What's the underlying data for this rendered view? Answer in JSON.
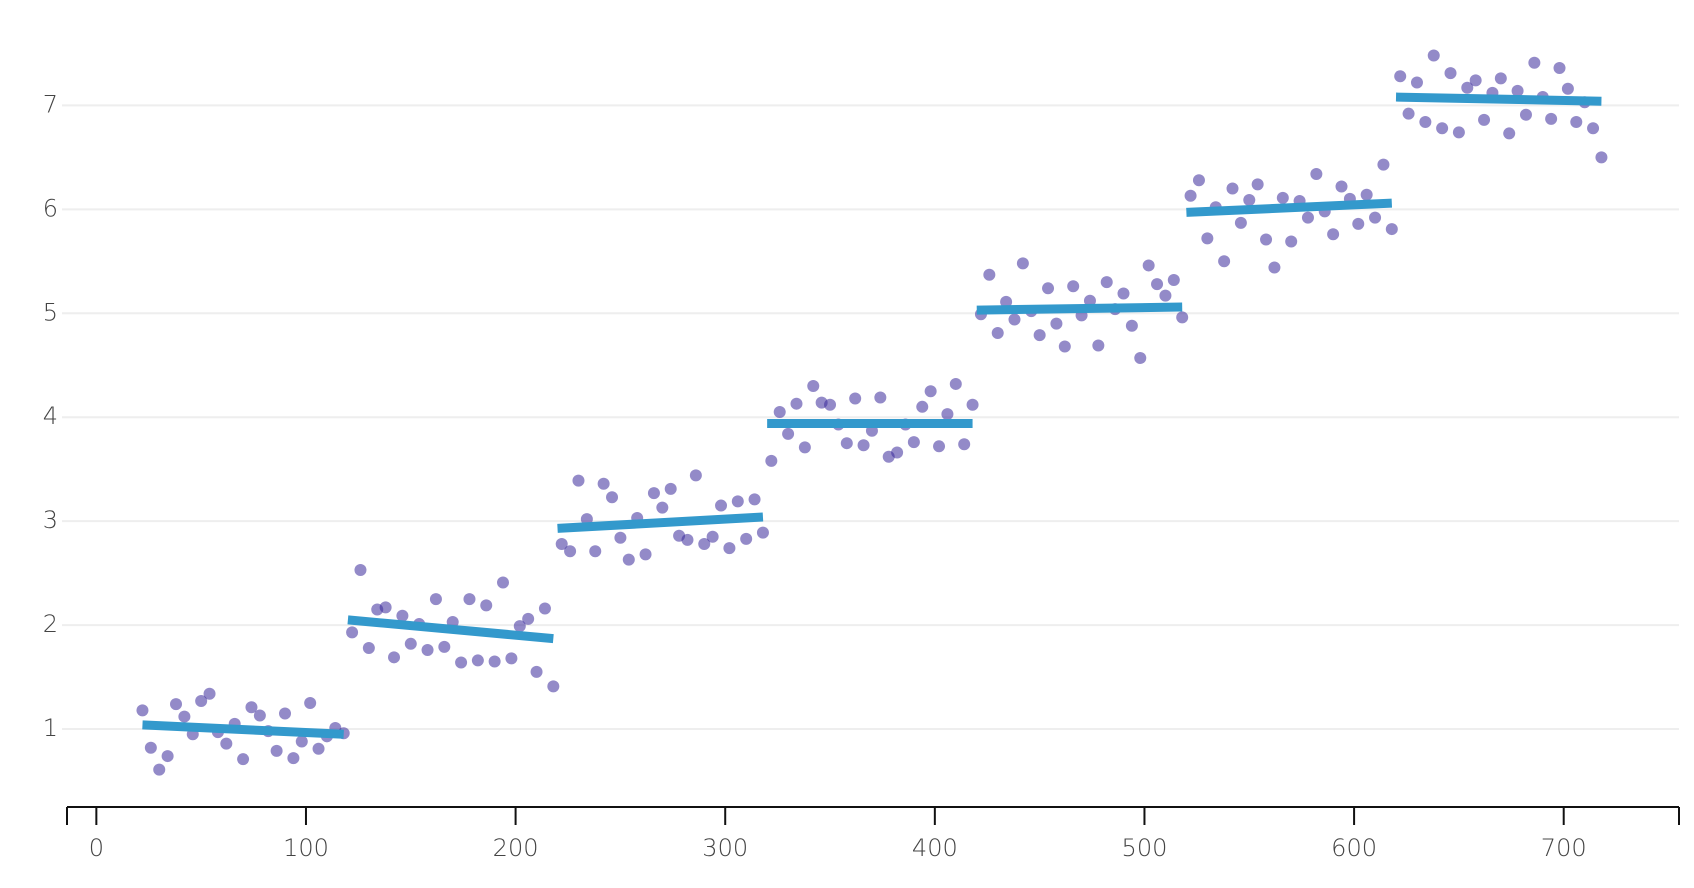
{
  "chart_data": {
    "type": "scatter",
    "xlim": [
      -14,
      755
    ],
    "ylim": [
      0.25,
      7.6
    ],
    "xticks": [
      0,
      100,
      200,
      300,
      400,
      500,
      600,
      700
    ],
    "yticks": [
      1,
      2,
      3,
      4,
      5,
      6,
      7
    ],
    "grid": true,
    "series": [
      {
        "color": "#3a2a9a",
        "x": [
          22,
          26,
          30,
          34,
          38,
          42,
          46,
          50,
          54,
          58,
          62,
          66,
          70,
          74,
          78,
          82,
          86,
          90,
          94,
          98,
          102,
          106,
          110,
          114,
          118,
          122,
          126,
          130,
          134,
          138,
          142,
          146,
          150,
          154,
          158,
          162,
          166,
          170,
          174,
          178,
          182,
          186,
          190,
          194,
          198,
          202,
          206,
          210,
          214,
          218,
          222,
          226,
          230,
          234,
          238,
          242,
          246,
          250,
          254,
          258,
          262,
          266,
          270,
          274,
          278,
          282,
          286,
          290,
          294,
          298,
          302,
          306,
          310,
          314,
          318,
          322,
          326,
          330,
          334,
          338,
          342,
          346,
          350,
          354,
          358,
          362,
          366,
          370,
          374,
          378,
          382,
          386,
          390,
          394,
          398,
          402,
          406,
          410,
          414,
          418,
          422,
          426,
          430,
          434,
          438,
          442,
          446,
          450,
          454,
          458,
          462,
          466,
          470,
          474,
          478,
          482,
          486,
          490,
          494,
          498,
          502,
          506,
          510,
          514,
          518,
          522,
          526,
          530,
          534,
          538,
          542,
          546,
          550,
          554,
          558,
          562,
          566,
          570,
          574,
          578,
          582,
          586,
          590,
          594,
          598,
          602,
          606,
          610,
          614,
          618,
          622,
          626,
          630,
          634,
          638,
          642,
          646,
          650,
          654,
          658,
          662,
          666,
          670,
          674,
          678,
          682,
          686,
          690,
          694,
          698,
          702,
          706,
          710,
          714,
          718
        ],
        "values": [
          1.18,
          0.82,
          0.61,
          0.74,
          1.24,
          1.12,
          0.95,
          1.27,
          1.34,
          0.97,
          0.86,
          1.05,
          0.71,
          1.21,
          1.13,
          0.98,
          0.79,
          1.15,
          0.72,
          0.88,
          1.25,
          0.81,
          0.93,
          1.01,
          0.96,
          1.93,
          2.53,
          1.78,
          2.15,
          2.17,
          1.69,
          2.09,
          1.82,
          2.01,
          1.76,
          2.25,
          1.79,
          2.03,
          1.64,
          2.25,
          1.66,
          2.19,
          1.65,
          2.41,
          1.68,
          1.99,
          2.06,
          1.55,
          2.16,
          1.41,
          2.78,
          2.71,
          3.39,
          3.02,
          2.71,
          3.36,
          3.23,
          2.84,
          2.63,
          3.03,
          2.68,
          3.27,
          3.13,
          3.31,
          2.86,
          2.82,
          3.44,
          2.78,
          2.85,
          3.15,
          2.74,
          3.19,
          2.83,
          3.21,
          2.89,
          3.58,
          4.05,
          3.84,
          4.13,
          3.71,
          4.3,
          4.14,
          4.12,
          3.93,
          3.75,
          4.18,
          3.73,
          3.87,
          4.19,
          3.62,
          3.66,
          3.93,
          3.76,
          4.1,
          4.25,
          3.72,
          4.03,
          4.32,
          3.74,
          4.12,
          4.99,
          5.37,
          4.81,
          5.11,
          4.94,
          5.48,
          5.02,
          4.79,
          5.24,
          4.9,
          4.68,
          5.26,
          4.98,
          5.12,
          4.69,
          5.3,
          5.04,
          5.19,
          4.88,
          4.57,
          5.46,
          5.28,
          5.17,
          5.32,
          4.96,
          6.13,
          6.28,
          5.72,
          6.02,
          5.5,
          6.2,
          5.87,
          6.09,
          6.24,
          5.71,
          5.44,
          6.11,
          5.69,
          6.08,
          5.92,
          6.34,
          5.98,
          5.76,
          6.22,
          6.1,
          5.86,
          6.14,
          5.92,
          6.43,
          5.81,
          7.28,
          6.92,
          7.22,
          6.84,
          7.48,
          6.78,
          7.31,
          6.74,
          7.17,
          7.24,
          6.86,
          7.12,
          7.26,
          6.73,
          7.14,
          6.91,
          7.41,
          7.08,
          6.87,
          7.36,
          7.16,
          6.84,
          7.03,
          6.78,
          6.5
        ]
      }
    ],
    "fits": {
      "color": "#3399cc",
      "lines": [
        {
          "x": [
            22,
            118
          ],
          "values": [
            1.04,
            0.95
          ]
        },
        {
          "x": [
            120,
            218
          ],
          "values": [
            2.05,
            1.87
          ]
        },
        {
          "x": [
            220,
            318
          ],
          "values": [
            2.93,
            3.04
          ]
        },
        {
          "x": [
            320,
            418
          ],
          "values": [
            3.94,
            3.94
          ]
        },
        {
          "x": [
            420,
            518
          ],
          "values": [
            5.03,
            5.06
          ]
        },
        {
          "x": [
            520,
            618
          ],
          "values": [
            5.97,
            6.06
          ]
        },
        {
          "x": [
            620,
            718
          ],
          "values": [
            7.08,
            7.04
          ]
        }
      ]
    }
  }
}
